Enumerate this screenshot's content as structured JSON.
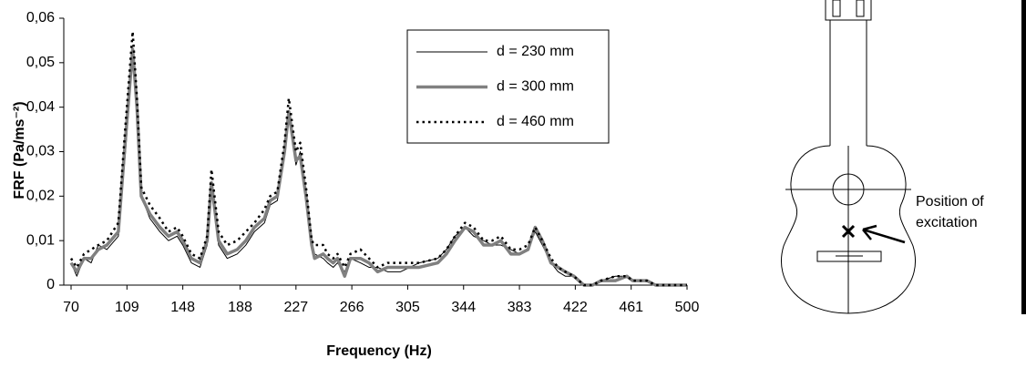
{
  "chart_data": {
    "type": "line",
    "xlabel": "Frequency (Hz)",
    "ylabel": "FRF (Pa/ms⁻²)",
    "x": [
      70,
      74,
      79,
      84,
      89,
      95,
      103,
      108,
      113,
      116,
      119,
      125,
      132,
      138,
      144,
      148,
      154,
      160,
      165,
      168,
      173,
      179,
      186,
      192,
      198,
      205,
      209,
      214,
      219,
      222,
      227,
      230,
      234,
      238,
      240,
      246,
      249,
      253,
      256,
      261,
      265,
      272,
      278,
      284,
      291,
      300,
      313,
      326,
      332,
      338,
      345,
      351,
      358,
      364,
      370,
      377,
      383,
      389,
      394,
      399,
      405,
      410,
      415,
      421,
      428,
      434,
      440,
      450,
      458,
      462,
      472,
      478,
      500
    ],
    "series": [
      {
        "name": "d = 230 mm",
        "color": "#000000",
        "width": 1,
        "dotted": false,
        "values": [
          0.005,
          0.002,
          0.006,
          0.005,
          0.009,
          0.008,
          0.011,
          0.03,
          0.051,
          0.041,
          0.02,
          0.015,
          0.012,
          0.01,
          0.011,
          0.009,
          0.005,
          0.004,
          0.009,
          0.022,
          0.009,
          0.006,
          0.007,
          0.009,
          0.012,
          0.014,
          0.018,
          0.019,
          0.029,
          0.038,
          0.027,
          0.03,
          0.021,
          0.01,
          0.007,
          0.006,
          0.005,
          0.004,
          0.005,
          0.003,
          0.006,
          0.005,
          0.004,
          0.004,
          0.003,
          0.003,
          0.005,
          0.006,
          0.008,
          0.011,
          0.013,
          0.011,
          0.01,
          0.009,
          0.009,
          0.008,
          0.007,
          0.008,
          0.012,
          0.009,
          0.005,
          0.003,
          0.002,
          0.002,
          0,
          0,
          0.001,
          0.002,
          0.002,
          0.001,
          0.001,
          0,
          0
        ]
      },
      {
        "name": "d = 300 mm",
        "color": "#808080",
        "width": 3.5,
        "dotted": false,
        "values": [
          0.005,
          0.003,
          0.006,
          0.006,
          0.008,
          0.009,
          0.012,
          0.033,
          0.053,
          0.04,
          0.02,
          0.016,
          0.013,
          0.011,
          0.012,
          0.01,
          0.006,
          0.005,
          0.01,
          0.023,
          0.01,
          0.007,
          0.008,
          0.01,
          0.013,
          0.015,
          0.019,
          0.02,
          0.03,
          0.039,
          0.028,
          0.029,
          0.02,
          0.009,
          0.006,
          0.007,
          0.006,
          0.005,
          0.006,
          0.002,
          0.006,
          0.006,
          0.005,
          0.003,
          0.004,
          0.004,
          0.004,
          0.005,
          0.007,
          0.01,
          0.013,
          0.012,
          0.009,
          0.009,
          0.01,
          0.007,
          0.007,
          0.008,
          0.013,
          0.01,
          0.005,
          0.004,
          0.003,
          0.002,
          0,
          0,
          0.001,
          0.001,
          0.002,
          0.001,
          0.001,
          0,
          0
        ]
      },
      {
        "name": "d = 460 mm",
        "color": "#000000",
        "width": 2.5,
        "dotted": true,
        "values": [
          0.006,
          0.004,
          0.007,
          0.008,
          0.009,
          0.01,
          0.014,
          0.036,
          0.057,
          0.042,
          0.022,
          0.018,
          0.015,
          0.012,
          0.013,
          0.011,
          0.007,
          0.006,
          0.011,
          0.026,
          0.012,
          0.009,
          0.01,
          0.012,
          0.014,
          0.017,
          0.02,
          0.021,
          0.032,
          0.042,
          0.03,
          0.032,
          0.022,
          0.01,
          0.009,
          0.009,
          0.007,
          0.006,
          0.007,
          0.004,
          0.007,
          0.008,
          0.006,
          0.004,
          0.005,
          0.005,
          0.005,
          0.006,
          0.008,
          0.011,
          0.014,
          0.013,
          0.01,
          0.01,
          0.011,
          0.008,
          0.008,
          0.009,
          0.013,
          0.01,
          0.006,
          0.004,
          0.003,
          0.002,
          0,
          0,
          0.001,
          0.002,
          0.002,
          0.001,
          0.001,
          0,
          0
        ]
      }
    ],
    "xlim": [
      70,
      500
    ],
    "xticks": [
      70,
      109,
      148,
      188,
      227,
      266,
      305,
      344,
      383,
      422,
      461,
      500
    ],
    "ylim": [
      0,
      0.06
    ],
    "yticks": [
      0,
      {
        "value": 0.01,
        "label": "0,01"
      },
      {
        "value": 0.02,
        "label": "0,02"
      },
      {
        "value": 0.03,
        "label": "0,03"
      },
      {
        "value": 0.04,
        "label": "0,04"
      },
      {
        "value": 0.05,
        "label": "0,05"
      },
      {
        "value": 0.06,
        "label": "0,06"
      }
    ],
    "grid": false,
    "legend": "upper right"
  },
  "diagram": {
    "label_lines": [
      "Position of",
      "excitation"
    ]
  }
}
